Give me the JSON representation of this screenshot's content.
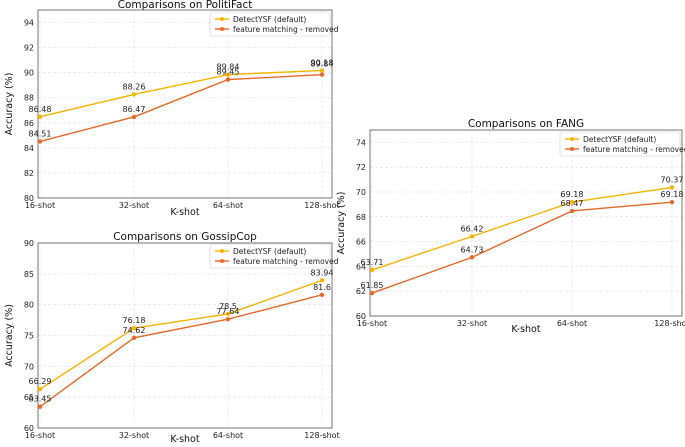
{
  "chart_data": [
    {
      "type": "line",
      "title": "Comparisons on PolitiFact",
      "xlabel": "K-shot",
      "ylabel": "Accuracy (%)",
      "categories": [
        "16-shot",
        "32-shot",
        "64-shot",
        "128-shot"
      ],
      "ylim": [
        80,
        95
      ],
      "yticks": [
        80,
        82,
        84,
        86,
        88,
        90,
        92,
        94
      ],
      "grid": true,
      "legend": "top-right",
      "series": [
        {
          "name": "DetectYSF (default)",
          "color": "#f5b400",
          "values": [
            86.48,
            88.26,
            89.84,
            90.18
          ]
        },
        {
          "name": "feature matching - removed",
          "color": "#e8682a",
          "values": [
            84.51,
            86.47,
            89.45,
            89.84
          ]
        }
      ]
    },
    {
      "type": "line",
      "title": "Comparisons on GossipCop",
      "xlabel": "K-shot",
      "ylabel": "Accuracy (%)",
      "categories": [
        "16-shot",
        "32-shot",
        "64-shot",
        "128-shot"
      ],
      "ylim": [
        60,
        90
      ],
      "yticks": [
        60,
        65,
        70,
        75,
        80,
        85,
        90
      ],
      "grid": true,
      "legend": "top-right",
      "series": [
        {
          "name": "DetectYSF (default)",
          "color": "#f5b400",
          "values": [
            66.29,
            76.18,
            78.5,
            83.94
          ]
        },
        {
          "name": "feature matching - removed",
          "color": "#e8682a",
          "values": [
            63.45,
            74.62,
            77.64,
            81.6
          ]
        }
      ]
    },
    {
      "type": "line",
      "title": "Comparisons on FANG",
      "xlabel": "K-shot",
      "ylabel": "Accuracy (%)",
      "categories": [
        "16-shot",
        "32-shot",
        "64-shot",
        "128-shot"
      ],
      "ylim": [
        60,
        75
      ],
      "yticks": [
        60,
        62,
        64,
        66,
        68,
        70,
        72,
        74
      ],
      "grid": true,
      "legend": "top-right",
      "series": [
        {
          "name": "DetectYSF (default)",
          "color": "#f5b400",
          "values": [
            63.71,
            66.42,
            69.18,
            70.37
          ]
        },
        {
          "name": "feature matching - removed",
          "color": "#e8682a",
          "values": [
            61.85,
            64.73,
            68.47,
            69.18
          ]
        }
      ]
    }
  ]
}
